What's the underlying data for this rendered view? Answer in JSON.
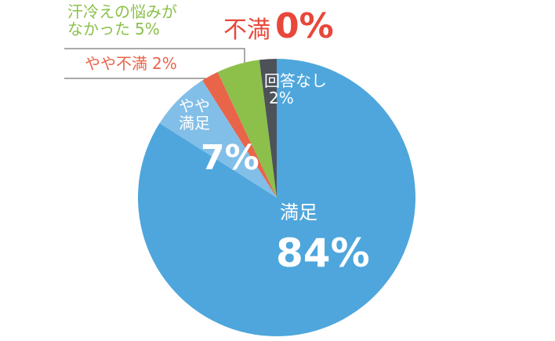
{
  "chart_data": {
    "type": "pie",
    "categories": [
      "満足",
      "やや満足",
      "やや不満",
      "汗冷えの悩みがなかった",
      "回答なし",
      "不満"
    ],
    "values": [
      84,
      7,
      2,
      5,
      2,
      0
    ],
    "value_labels": [
      "84%",
      "7%",
      "2%",
      "5%",
      "2%",
      "0%"
    ],
    "colors": [
      "#4ea6dc",
      "#82bfe8",
      "#e8654a",
      "#8cc04b",
      "#4d5258",
      "#e8473a"
    ]
  }
}
